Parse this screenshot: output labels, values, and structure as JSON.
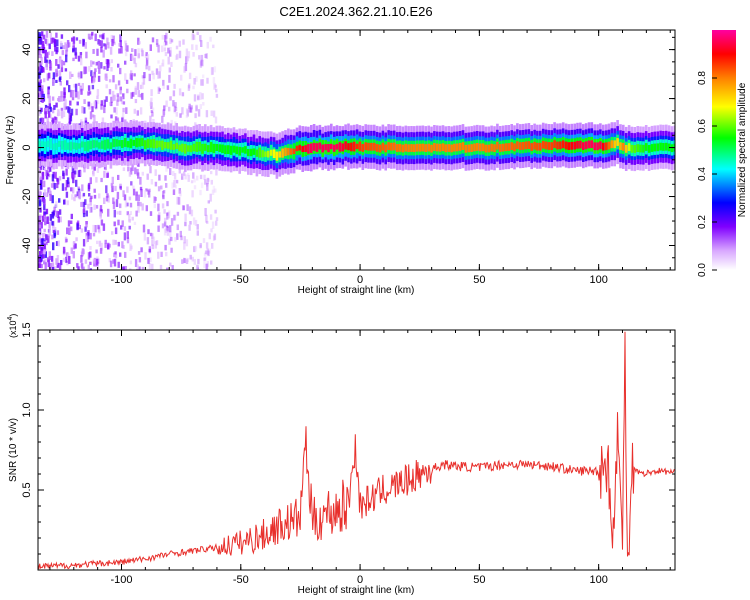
{
  "title": "C2E1.2024.362.21.10.E26",
  "colors": {
    "accent": "#e8302c",
    "frame": "#000000",
    "background": "#ffffff"
  },
  "chart_data": [
    {
      "type": "heatmap",
      "title": "C2E1.2024.362.21.10.E26",
      "xlabel": "Height of straight line (km)",
      "ylabel": "Frequency (Hz)",
      "xlim": [
        -135,
        132
      ],
      "ylim": [
        -50,
        48
      ],
      "x_ticks": [
        -100,
        -50,
        0,
        50,
        100
      ],
      "y_ticks": [
        -40,
        -20,
        0,
        20,
        40
      ],
      "x_tick_labels": [
        "-100",
        "-50",
        "0",
        "50",
        "100"
      ],
      "y_tick_labels": [
        "-40",
        "-20",
        "0",
        "20",
        "40"
      ],
      "colorbar": {
        "label": "Normalized spectral amplitude",
        "range": [
          0,
          1
        ],
        "ticks": [
          0.0,
          0.2,
          0.4,
          0.6,
          0.8
        ],
        "tick_labels": [
          "0.0",
          "0.2",
          "0.4",
          "0.6",
          "0.8"
        ],
        "colormap": [
          "#ffffff",
          "#e0b8ff",
          "#8000ff",
          "#0000ff",
          "#00ffff",
          "#00ff00",
          "#ffff00",
          "#ff8000",
          "#ff0000",
          "#ff00a0"
        ]
      },
      "ridge": {
        "x": [
          -130,
          -110,
          -95,
          -85,
          -75,
          -60,
          -45,
          -35,
          -28,
          -22,
          -10,
          -5,
          0,
          20,
          50,
          80,
          95,
          100,
          103,
          107,
          110,
          113,
          120,
          132
        ],
        "center_hz": [
          1,
          1,
          2,
          1,
          0,
          0,
          -2,
          -3,
          -1,
          0,
          0,
          1,
          0,
          0,
          0,
          1,
          1,
          1,
          0,
          2,
          0,
          0,
          0,
          0
        ],
        "amplitude": [
          0.45,
          0.5,
          0.55,
          0.6,
          0.6,
          0.55,
          0.55,
          0.7,
          0.85,
          0.95,
          0.95,
          0.9,
          0.85,
          0.8,
          0.8,
          0.85,
          0.95,
          0.95,
          0.85,
          0.7,
          0.8,
          0.6,
          0.55,
          0.55
        ]
      },
      "noise_region": [
        -135,
        -60
      ]
    },
    {
      "type": "line",
      "xlabel": "Height of straight line (km)",
      "ylabel": "SNR (10 * v/v)",
      "scale_label": "(x10",
      "scale_exp": "4",
      "scale_close": ")",
      "xlim": [
        -135,
        132
      ],
      "ylim": [
        0,
        1.5
      ],
      "x_ticks": [
        -100,
        -50,
        0,
        50,
        100
      ],
      "y_ticks": [
        0.5,
        1.0,
        1.5
      ],
      "x_tick_labels": [
        "-100",
        "-50",
        "0",
        "50",
        "100"
      ],
      "y_tick_labels": [
        "0.5",
        "1.0",
        "1.5"
      ],
      "series": [
        {
          "color": "#e8302c",
          "x": [
            -135,
            -120,
            -100,
            -90,
            -80,
            -70,
            -60,
            -50,
            -40,
            -35,
            -30,
            -25,
            -23,
            -20,
            -15,
            -10,
            -5,
            -2,
            0,
            5,
            10,
            15,
            20,
            25,
            30,
            35,
            40,
            50,
            60,
            70,
            80,
            90,
            100,
            104,
            106,
            108,
            110,
            111,
            112,
            114,
            118,
            125,
            132
          ],
          "y": [
            0.02,
            0.03,
            0.05,
            0.07,
            0.1,
            0.12,
            0.14,
            0.17,
            0.22,
            0.27,
            0.3,
            0.33,
            0.82,
            0.3,
            0.35,
            0.38,
            0.4,
            0.78,
            0.4,
            0.45,
            0.5,
            0.53,
            0.56,
            0.6,
            0.63,
            0.66,
            0.65,
            0.64,
            0.66,
            0.66,
            0.65,
            0.62,
            0.62,
            0.68,
            0.1,
            0.95,
            0.05,
            1.5,
            0.05,
            0.65,
            0.6,
            0.62,
            0.61
          ]
        }
      ]
    }
  ]
}
